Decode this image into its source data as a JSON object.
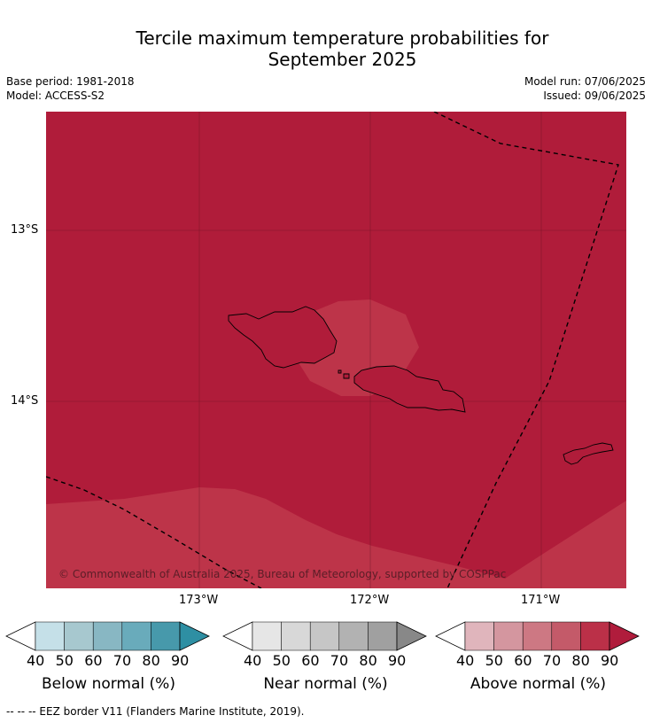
{
  "title_line1": "Tercile maximum temperature probabilities for",
  "title_line2": "September 2025",
  "base_period": "Base period: 1981-2018",
  "model": "Model: ACCESS-S2",
  "model_run": "Model run: 07/06/2025",
  "issued": "Issued: 09/06/2025",
  "lat_labels": [
    "13°S",
    "14°S"
  ],
  "lon_labels": [
    "173°W",
    "172°W",
    "171°W"
  ],
  "copyright": "© Commonwealth of Australia 2025, Bureau of Meteorology, supported by COSPPac",
  "colorbars": [
    {
      "title": "Below normal (%)",
      "ticks": [
        "40",
        "50",
        "60",
        "70",
        "80",
        "90"
      ],
      "colors": [
        "#c5e0e8",
        "#a7c8cf",
        "#88b7c3",
        "#69abbb",
        "#4799ab",
        "#2e8fa3"
      ]
    },
    {
      "title": "Near normal (%)",
      "ticks": [
        "40",
        "50",
        "60",
        "70",
        "80",
        "90"
      ],
      "colors": [
        "#e6e6e6",
        "#d8d8d8",
        "#c6c6c6",
        "#b2b2b2",
        "#a0a0a0",
        "#888888"
      ]
    },
    {
      "title": "Above normal (%)",
      "ticks": [
        "40",
        "50",
        "60",
        "70",
        "80",
        "90"
      ],
      "colors": [
        "#e0b5bc",
        "#d4969f",
        "#cd7883",
        "#c45a69",
        "#bb3048",
        "#b01c3c"
      ]
    }
  ],
  "footer": "--  --  -- EEZ border V11 (Flanders Marine Institute, 2019).",
  "map_colors": {
    "dominant": "#b01c3a",
    "lighter": "#bd3449"
  }
}
